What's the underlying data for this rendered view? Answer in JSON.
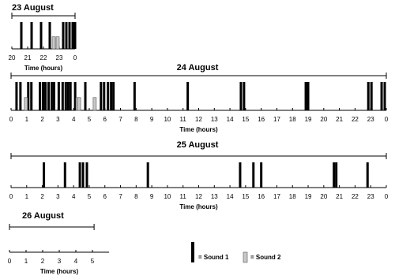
{
  "chart_data": [
    {
      "type": "timeline",
      "title": "23 August",
      "xlabel": "Time (hours)",
      "xlim": [
        20,
        24
      ],
      "period": [
        20,
        24
      ],
      "xticks": [
        20,
        21,
        22,
        23,
        {
          "value": 24,
          "label": "0"
        }
      ],
      "series": [
        {
          "name": "= Sound 1",
          "color": "#000000",
          "values": [
            20.6,
            21.25,
            21.85,
            22.4,
            23.25,
            23.45,
            23.65,
            23.85,
            24.0
          ]
        },
        {
          "name": "= Sound 2",
          "color": "#c8c8c8",
          "values": [
            22.65,
            22.9
          ]
        }
      ]
    },
    {
      "type": "timeline",
      "title": "24 August",
      "xlabel": "Time (hours)",
      "xlim": [
        0,
        24
      ],
      "period": [
        0,
        24
      ],
      "xticks": [
        0,
        1,
        2,
        3,
        4,
        5,
        6,
        7,
        8,
        9,
        10,
        11,
        12,
        13,
        14,
        15,
        16,
        17,
        18,
        19,
        20,
        21,
        22,
        23,
        {
          "value": 24,
          "label": "0"
        }
      ],
      "series": [
        {
          "name": "= Sound 1",
          "color": "#000000",
          "values": [
            0.35,
            0.6,
            1.1,
            1.3,
            1.85,
            2.05,
            2.2,
            2.4,
            2.6,
            2.75,
            3.05,
            3.3,
            3.5,
            3.65,
            3.8,
            4.1,
            4.75,
            5.75,
            5.95,
            6.2,
            6.4,
            6.55,
            7.9,
            11.3,
            14.7,
            14.9,
            18.85,
            19.0,
            22.85,
            23.05,
            23.7,
            23.9
          ]
        },
        {
          "name": "= Sound 2",
          "color": "#c8c8c8",
          "values": [
            0.95,
            4.25,
            4.35,
            5.35
          ]
        }
      ]
    },
    {
      "type": "timeline",
      "title": "25 August",
      "xlabel": "Time (hours)",
      "xlim": [
        0,
        24
      ],
      "period": [
        0,
        24
      ],
      "xticks": [
        0,
        1,
        2,
        3,
        4,
        5,
        6,
        7,
        8,
        9,
        10,
        11,
        12,
        13,
        14,
        15,
        16,
        17,
        18,
        19,
        20,
        21,
        22,
        23,
        {
          "value": 24,
          "label": "0"
        }
      ],
      "series": [
        {
          "name": "= Sound 1",
          "color": "#000000",
          "values": [
            2.1,
            3.45,
            4.4,
            4.6,
            4.85,
            8.75,
            14.65,
            15.5,
            16.0,
            20.65,
            20.8,
            22.8
          ]
        },
        {
          "name": "= Sound 2",
          "color": "#c8c8c8",
          "values": []
        }
      ]
    },
    {
      "type": "timeline",
      "title": "26 August",
      "xlabel": "Time (hours)",
      "xlim": [
        0,
        6
      ],
      "period": [
        0,
        5.1
      ],
      "xticks": [
        0,
        1,
        2,
        3,
        4,
        5
      ],
      "series": [
        {
          "name": "= Sound 1",
          "color": "#000000",
          "values": []
        },
        {
          "name": "= Sound 2",
          "color": "#c8c8c8",
          "values": []
        }
      ]
    }
  ]
}
